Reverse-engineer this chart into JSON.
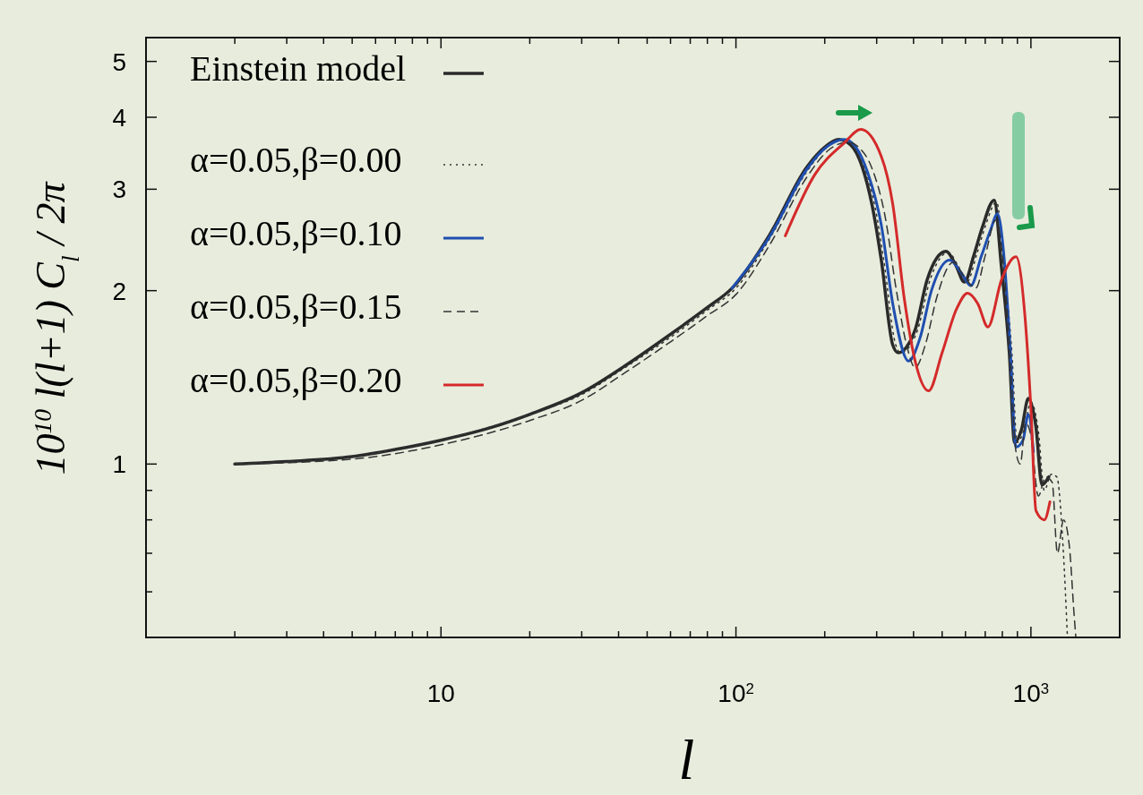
{
  "chart_data": {
    "type": "line",
    "xlabel": "l",
    "ylabel": "10$^{10}$ l(l+1) C$_{l}$ / 2π",
    "log": "xy",
    "xlim": [
      1,
      2000
    ],
    "ylim": [
      0.5,
      5.5
    ],
    "xticks": [
      {
        "value": 2,
        "label": null
      },
      {
        "value": 3,
        "label": null
      },
      {
        "value": 4,
        "label": null
      },
      {
        "value": 5,
        "label": null
      },
      {
        "value": 6,
        "label": null
      },
      {
        "value": 7,
        "label": null
      },
      {
        "value": 8,
        "label": null
      },
      {
        "value": 9,
        "label": null
      },
      10,
      {
        "value": 20,
        "label": null
      },
      {
        "value": 30,
        "label": null
      },
      {
        "value": 40,
        "label": null
      },
      {
        "value": 50,
        "label": null
      },
      {
        "value": 60,
        "label": null
      },
      {
        "value": 70,
        "label": null
      },
      {
        "value": 80,
        "label": null
      },
      {
        "value": 90,
        "label": null
      },
      {
        "value": 100,
        "label": "10$^{2}$"
      },
      {
        "value": 200,
        "label": null
      },
      {
        "value": 300,
        "label": null
      },
      {
        "value": 400,
        "label": null
      },
      {
        "value": 500,
        "label": null
      },
      {
        "value": 600,
        "label": null
      },
      {
        "value": 700,
        "label": null
      },
      {
        "value": 800,
        "label": null
      },
      {
        "value": 900,
        "label": null
      },
      {
        "value": 1000,
        "label": "10$^{3}$"
      }
    ],
    "yticks": [
      {
        "value": 0.6,
        "label": null
      },
      {
        "value": 0.7,
        "label": null
      },
      {
        "value": 0.8,
        "label": null
      },
      {
        "value": 0.9,
        "label": null
      },
      1,
      2,
      3,
      4,
      5
    ],
    "legend": "top left",
    "grid": false,
    "series": [
      {
        "name": "Einstein model",
        "color": "#2a2a2a",
        "line_style": "solid",
        "x": [
          2,
          3,
          5,
          7,
          10,
          15,
          20,
          30,
          42,
          60,
          80,
          97,
          130,
          174,
          200,
          223,
          245,
          268,
          290,
          311,
          340,
          355,
          380,
          405,
          445,
          480,
          515,
          555,
          595,
          640,
          685,
          750,
          795,
          845,
          880,
          930,
          980,
          1040,
          1090,
          1150
        ],
        "values": [
          1.0,
          1.01,
          1.03,
          1.06,
          1.1,
          1.16,
          1.22,
          1.33,
          1.48,
          1.68,
          1.87,
          2.02,
          2.5,
          3.28,
          3.55,
          3.66,
          3.58,
          3.28,
          2.8,
          2.26,
          1.61,
          1.56,
          1.6,
          1.71,
          2.09,
          2.28,
          2.34,
          2.22,
          2.07,
          2.3,
          2.58,
          2.87,
          2.19,
          1.56,
          1.09,
          1.15,
          1.3,
          1.16,
          0.92,
          0.95
        ]
      },
      {
        "name": "α=0.05,β=0.00",
        "color": "#333333",
        "line_style": "dotted",
        "x": [
          2,
          5,
          10,
          20,
          30,
          42,
          60,
          80,
          100,
          130,
          174,
          200,
          228,
          250,
          273,
          296,
          317,
          347,
          362,
          388,
          413,
          454,
          490,
          525,
          566,
          607,
          653,
          699,
          765,
          811,
          862,
          898,
          949,
          1000,
          1060,
          1110,
          1173,
          1224,
          1285,
          1330
        ],
        "values": [
          1.0,
          1.03,
          1.1,
          1.22,
          1.32,
          1.47,
          1.66,
          1.85,
          2.02,
          2.46,
          3.22,
          3.52,
          3.65,
          3.57,
          3.27,
          2.8,
          2.26,
          1.62,
          1.56,
          1.6,
          1.71,
          2.08,
          2.27,
          2.33,
          2.21,
          2.07,
          2.3,
          2.58,
          2.85,
          2.18,
          1.56,
          1.09,
          1.15,
          1.28,
          1.14,
          0.9,
          0.96,
          0.95,
          0.72,
          0.5
        ]
      },
      {
        "name": "α=0.05,β=0.10",
        "color": "#1f4fb0",
        "line_style": "solid",
        "x": [
          97,
          130,
          174,
          200,
          233,
          255,
          280,
          311,
          340,
          385,
          420,
          460,
          530,
          580,
          625,
          680,
          730,
          770,
          810,
          850,
          890,
          940,
          980,
          1020
        ],
        "values": [
          2.02,
          2.48,
          3.25,
          3.53,
          3.66,
          3.55,
          3.2,
          2.6,
          1.9,
          1.51,
          1.65,
          2.0,
          2.26,
          2.15,
          2.04,
          2.3,
          2.55,
          2.72,
          2.3,
          1.6,
          1.07,
          1.1,
          1.22,
          1.05
        ]
      },
      {
        "name": "α=0.05,β=0.15",
        "color": "#333333",
        "line_style": "dashed",
        "x": [
          2,
          5,
          10,
          20,
          30,
          42,
          60,
          80,
          100,
          130,
          174,
          205,
          240,
          262,
          290,
          320,
          350,
          380,
          405,
          440,
          480,
          545,
          600,
          650,
          700,
          760,
          805,
          850,
          890,
          920,
          960,
          1000,
          1060,
          1120,
          1180,
          1230,
          1290,
          1350,
          1400,
          1420
        ],
        "values": [
          1.0,
          1.02,
          1.08,
          1.19,
          1.29,
          1.44,
          1.63,
          1.81,
          1.97,
          2.4,
          3.15,
          3.5,
          3.62,
          3.54,
          3.25,
          2.7,
          2.0,
          1.6,
          1.47,
          1.62,
          1.95,
          2.24,
          2.1,
          2.02,
          2.3,
          2.65,
          2.25,
          1.55,
          1.05,
          1.0,
          1.18,
          1.12,
          0.88,
          0.95,
          0.93,
          0.7,
          0.8,
          0.72,
          0.55,
          0.5
        ]
      },
      {
        "name": "α=0.05,β=0.20",
        "color": "#d42a2a",
        "line_style": "solid",
        "x": [
          147,
          185,
          233,
          265,
          311,
          340,
          372,
          405,
          450,
          500,
          560,
          610,
          660,
          715,
          795,
          890,
          955,
          1000,
          1040,
          1110,
          1160
        ],
        "values": [
          2.49,
          3.18,
          3.61,
          3.81,
          3.42,
          2.83,
          1.94,
          1.51,
          1.34,
          1.56,
          1.86,
          1.98,
          1.9,
          1.73,
          2.09,
          2.29,
          1.8,
          1.25,
          0.83,
          0.8,
          0.86
        ]
      }
    ]
  }
}
